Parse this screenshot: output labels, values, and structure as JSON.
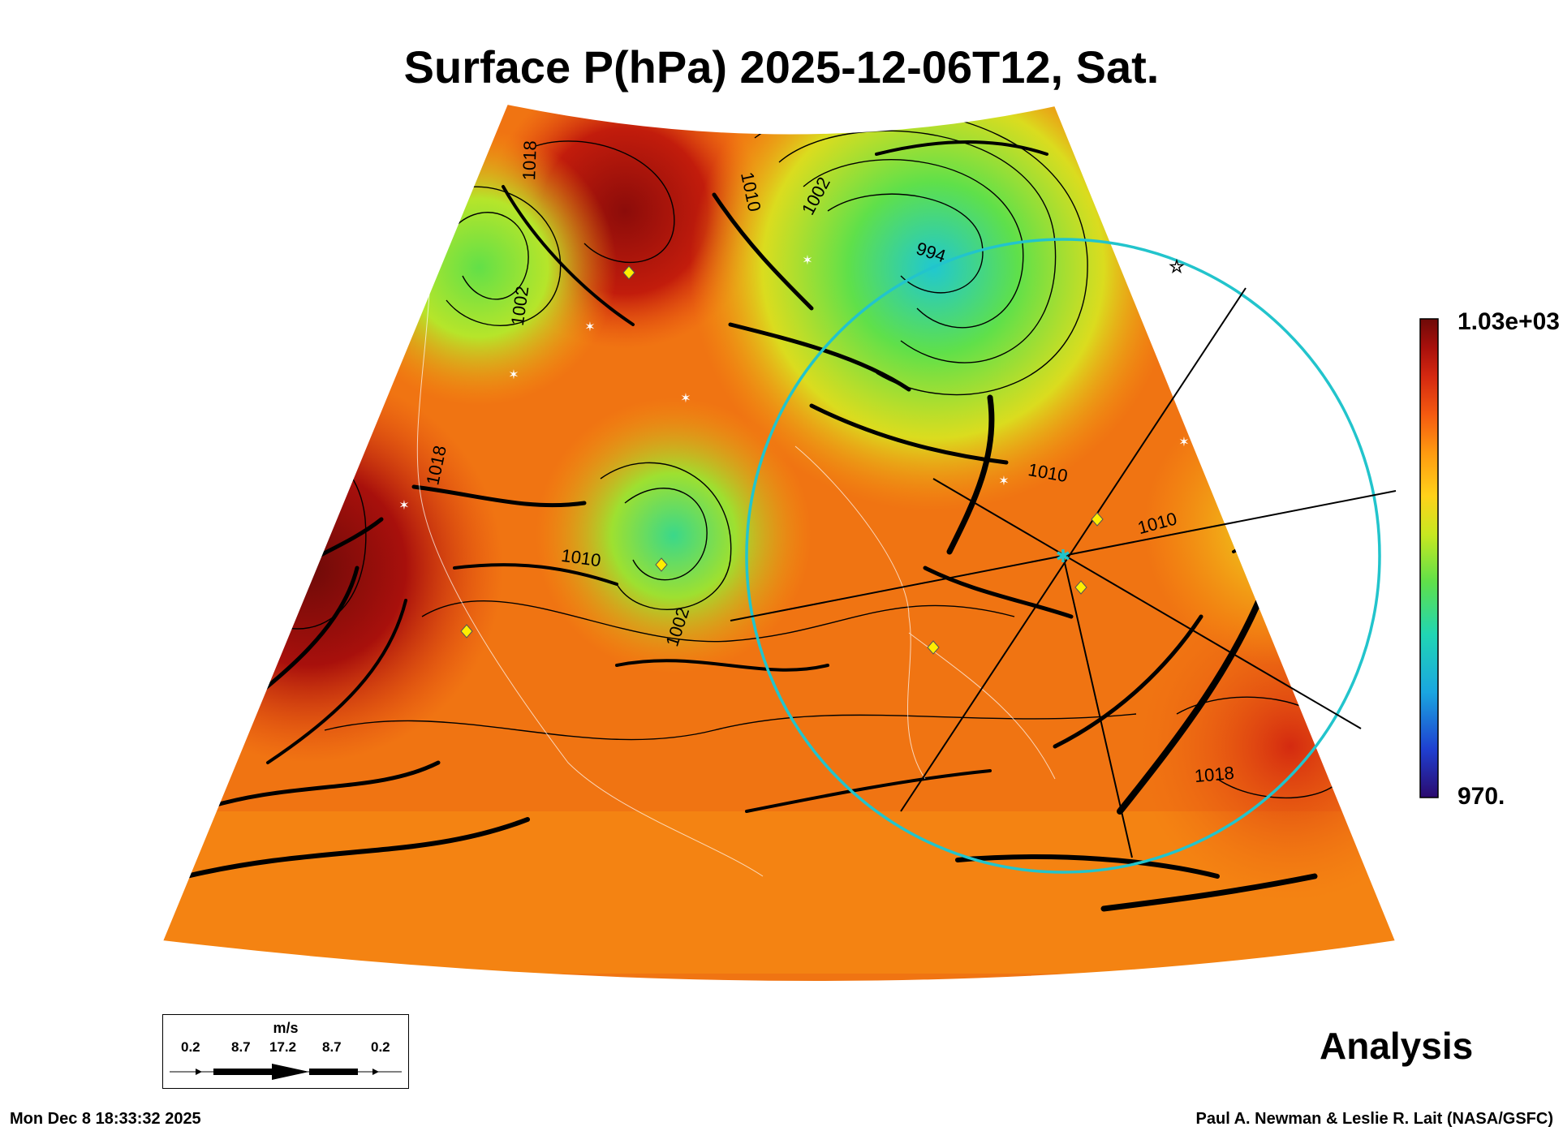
{
  "title": "Surface P(hPa) 2025-12-06T12, Sat.",
  "colorbar": {
    "max_label": "1.03e+03",
    "min_label": "970.",
    "stops": [
      "#2b0a6e",
      "#1f3fd0",
      "#1aa6e0",
      "#20d6b4",
      "#5fe04a",
      "#c8e820",
      "#ffd21a",
      "#ff9a10",
      "#f55a10",
      "#d42810",
      "#a8100c",
      "#6e0a08"
    ]
  },
  "contour_labels": [
    {
      "id": "c1010-n",
      "text": "1010"
    },
    {
      "id": "c1002-n",
      "text": "1002"
    },
    {
      "id": "c994",
      "text": "994"
    },
    {
      "id": "c1018-nw",
      "text": "1018"
    },
    {
      "id": "c1002-nw",
      "text": "1002"
    },
    {
      "id": "c1018-w",
      "text": "1018"
    },
    {
      "id": "c1010-c",
      "text": "1010"
    },
    {
      "id": "c1002-c",
      "text": "1002"
    },
    {
      "id": "c1010-e",
      "text": "1010"
    },
    {
      "id": "c1010-ne",
      "text": "1010"
    },
    {
      "id": "c1018-se",
      "text": "1018"
    }
  ],
  "wind_legend": {
    "unit": "m/s",
    "values": [
      "0.2",
      "8.7",
      "17.2",
      "8.7",
      "0.2"
    ]
  },
  "analysis_label": "Analysis",
  "footer": {
    "timestamp": "Mon Dec  8 18:33:32 2025",
    "credit": "Paul A. Newman & Leslie R. Lait (NASA/GSFC)"
  },
  "colors": {
    "circle": "#22c4cc",
    "marker": "#ffee00"
  }
}
